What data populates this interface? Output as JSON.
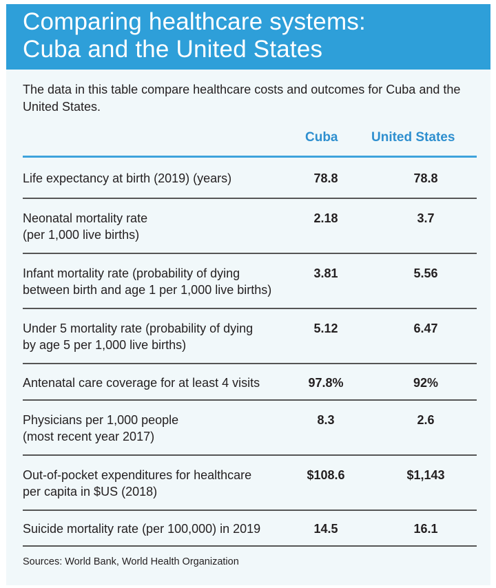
{
  "title": [
    "Comparing healthcare systems:",
    "Cuba and the United States"
  ],
  "intro": "The data in this table compare healthcare costs and outcomes for Cuba and the United States.",
  "columns": {
    "cuba": "Cuba",
    "us": "United States"
  },
  "colors": {
    "accent": "#2e9fd9",
    "panel": "#f1f8fa",
    "column_header": "#2e8fcf"
  },
  "rows": [
    {
      "label": [
        "Life expectancy at birth (2019) (years)"
      ],
      "cuba": "78.8",
      "us": "78.8"
    },
    {
      "label": [
        "Neonatal mortality rate",
        "(per 1,000 live births)"
      ],
      "cuba": "2.18",
      "us": "3.7"
    },
    {
      "label": [
        "Infant mortality rate (probability of dying",
        "between birth and age 1 per 1,000 live births)"
      ],
      "cuba": "3.81",
      "us": "5.56"
    },
    {
      "label": [
        "Under 5 mortality rate (probability of dying",
        "by age 5 per 1,000 live births)"
      ],
      "cuba": "5.12",
      "us": "6.47"
    },
    {
      "label": [
        "Antenatal care coverage for at least 4 visits"
      ],
      "cuba": "97.8%",
      "us": "92%"
    },
    {
      "label": [
        "Physicians per 1,000 people",
        "(most recent year 2017)"
      ],
      "cuba": "8.3",
      "us": "2.6"
    },
    {
      "label": [
        "Out-of-pocket expenditures for healthcare",
        "per capita in $US (2018)"
      ],
      "cuba": "$108.6",
      "us": "$1,143"
    },
    {
      "label": [
        "Suicide mortality rate (per 100,000) in 2019"
      ],
      "cuba": "14.5",
      "us": "16.1"
    }
  ],
  "sources": "Sources: World Bank, World Health Organization"
}
